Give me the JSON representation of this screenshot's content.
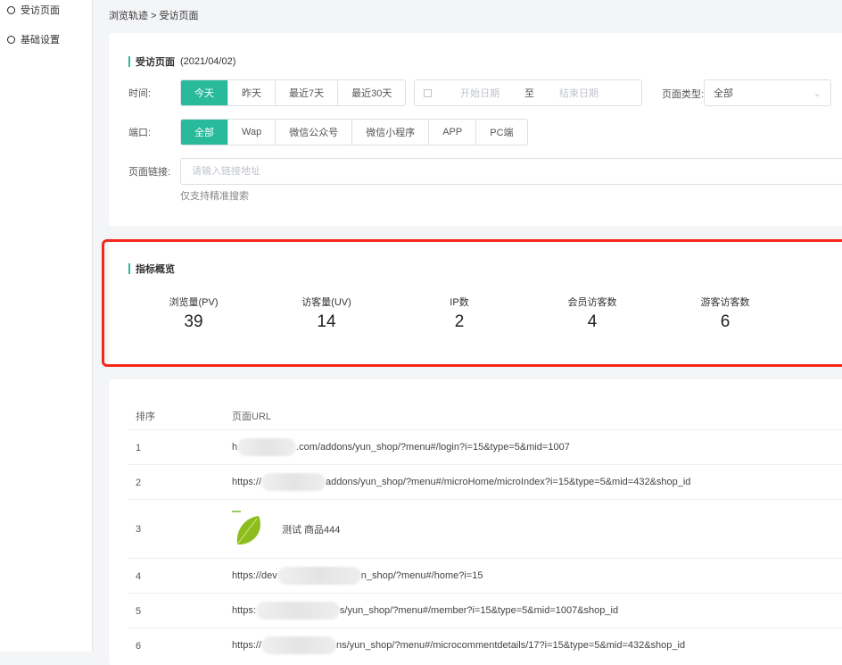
{
  "sidebar": {
    "items": [
      {
        "label": "受访页面"
      },
      {
        "label": "基础设置"
      }
    ]
  },
  "breadcrumb": "浏览轨迹 > 受访页面",
  "filter": {
    "title": "受访页面",
    "date": "(2021/04/02)",
    "time_label": "时间:",
    "time_options": [
      "今天",
      "昨天",
      "最近7天",
      "最近30天"
    ],
    "time_selected": "今天",
    "start_placeholder": "开始日期",
    "range_sep": "至",
    "end_placeholder": "结束日期",
    "page_type_label": "页面类型:",
    "page_type_value": "全部",
    "port_label": "端口:",
    "port_options": [
      "全部",
      "Wap",
      "微信公众号",
      "微信小程序",
      "APP",
      "PC端"
    ],
    "port_selected": "全部",
    "link_label": "页面链接:",
    "link_placeholder": "请输入链接地址",
    "link_hint": "仅支持精准搜索"
  },
  "overview": {
    "title": "指标概览",
    "stats": [
      {
        "label": "浏览量(PV)",
        "value": "39"
      },
      {
        "label": "访客量(UV)",
        "value": "14"
      },
      {
        "label": "IP数",
        "value": "2"
      },
      {
        "label": "会员访客数",
        "value": "4"
      },
      {
        "label": "游客访客数",
        "value": "6"
      }
    ]
  },
  "table": {
    "headers": [
      "排序",
      "页面URL"
    ],
    "rows": [
      {
        "rank": "1",
        "prefix": "h",
        "suffix": ".com/addons/yun_shop/?menu#/login?i=15&type=5&mid=1007"
      },
      {
        "rank": "2",
        "prefix": "https://",
        "suffix": "addons/yun_shop/?menu#/microHome/microIndex?i=15&type=5&mid=432&shop_id"
      },
      {
        "rank": "3",
        "product": "测试 商品444"
      },
      {
        "rank": "4",
        "prefix": "https://dev",
        "suffix": "n_shop/?menu#/home?i=15"
      },
      {
        "rank": "5",
        "prefix": "https:",
        "suffix": "s/yun_shop/?menu#/member?i=15&type=5&mid=1007&shop_id"
      },
      {
        "rank": "6",
        "prefix": "https://",
        "suffix": "ns/yun_shop/?menu#/microcommentdetails/17?i=15&type=5&mid=432&shop_id"
      }
    ]
  },
  "colors": {
    "accent": "#29ba9c",
    "highlight": "#f5271a"
  }
}
